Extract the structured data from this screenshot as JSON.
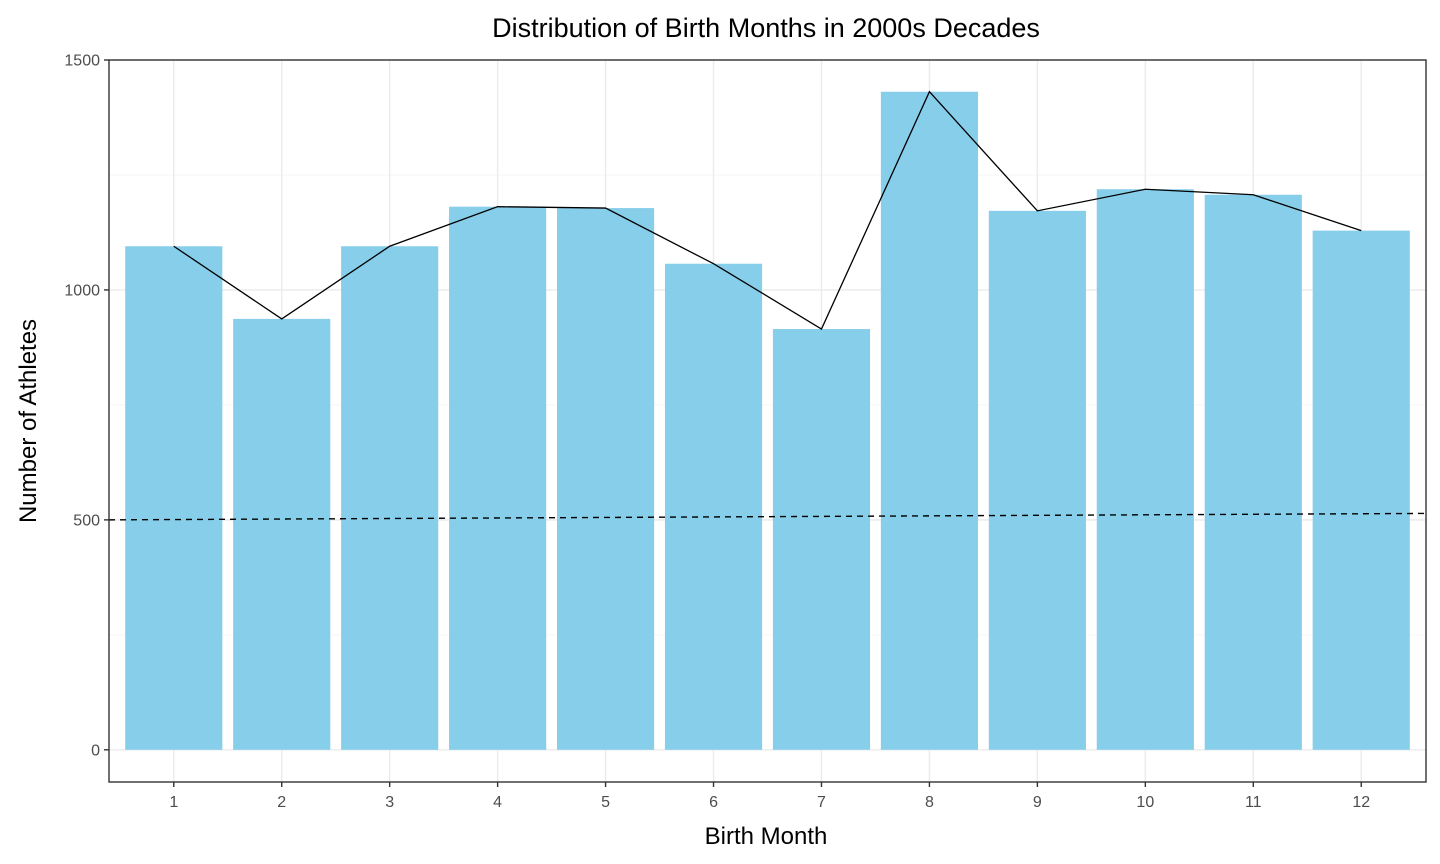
{
  "chart_data": {
    "type": "bar",
    "title": "Distribution of Birth Months in 2000s Decades",
    "xlabel": "Birth Month",
    "ylabel": "Number of Athletes",
    "categories": [
      "1",
      "2",
      "3",
      "4",
      "5",
      "6",
      "7",
      "8",
      "9",
      "10",
      "11",
      "12"
    ],
    "values": [
      1095,
      937,
      1095,
      1181,
      1178,
      1057,
      915,
      1431,
      1172,
      1219,
      1207,
      1129
    ],
    "line_values": [
      1095,
      937,
      1095,
      1181,
      1178,
      1057,
      915,
      1431,
      1172,
      1219,
      1207,
      1129
    ],
    "reference_line": {
      "x": [
        0.4,
        12.6
      ],
      "y": [
        500,
        514
      ],
      "style": "dashed"
    },
    "ylim": [
      -70,
      1500
    ],
    "y_ticks": [
      0,
      500,
      1000,
      1500
    ],
    "grid": true,
    "bar_color": "#87ceeb",
    "line_color": "#000000"
  }
}
